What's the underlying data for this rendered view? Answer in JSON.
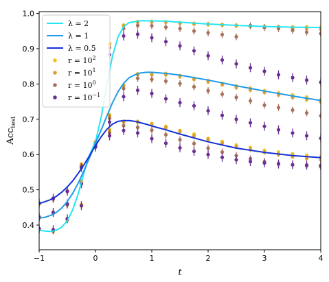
{
  "chart_data": {
    "type": "line",
    "xlabel": "t",
    "ylabel": "Acc_test",
    "xlim": [
      -1,
      4
    ],
    "ylim": [
      0.33,
      1.005
    ],
    "x_ticks": [
      -1,
      0,
      1,
      2,
      3,
      4
    ],
    "x_tick_labels": [
      "−1",
      "0",
      "1",
      "2",
      "3",
      "4"
    ],
    "y_ticks": [
      0.4,
      0.5,
      0.6,
      0.7,
      0.8,
      0.9,
      1.0
    ],
    "y_tick_labels": [
      "0.4",
      "0.5",
      "0.6",
      "0.7",
      "0.8",
      "0.9",
      "1.0"
    ],
    "grid": false,
    "legend_position": "top-left",
    "curves": [
      {
        "name": "λ = 2",
        "color": "#22e5f2",
        "x": [
          -1,
          -0.9,
          -0.8,
          -0.7,
          -0.6,
          -0.5,
          -0.4,
          -0.3,
          -0.2,
          -0.1,
          0,
          0.1,
          0.2,
          0.3,
          0.4,
          0.5,
          0.6,
          0.8,
          1.0,
          1.25,
          1.5,
          2,
          2.5,
          3,
          3.5,
          4
        ],
        "y": [
          0.386,
          0.383,
          0.382,
          0.385,
          0.394,
          0.412,
          0.445,
          0.492,
          0.551,
          0.601,
          0.636,
          0.705,
          0.795,
          0.878,
          0.933,
          0.963,
          0.974,
          0.979,
          0.979,
          0.978,
          0.975,
          0.97,
          0.966,
          0.963,
          0.961,
          0.96
        ]
      },
      {
        "name": "λ = 1",
        "color": "#1e9be8",
        "x": [
          -1,
          -0.9,
          -0.8,
          -0.7,
          -0.6,
          -0.5,
          -0.4,
          -0.3,
          -0.2,
          -0.1,
          0,
          0.1,
          0.2,
          0.3,
          0.4,
          0.5,
          0.6,
          0.7,
          0.8,
          0.9,
          1.0,
          1.25,
          1.5,
          2,
          2.5,
          3,
          3.5,
          4
        ],
        "y": [
          0.42,
          0.422,
          0.427,
          0.435,
          0.448,
          0.467,
          0.491,
          0.521,
          0.556,
          0.593,
          0.632,
          0.669,
          0.708,
          0.746,
          0.778,
          0.802,
          0.818,
          0.826,
          0.831,
          0.833,
          0.833,
          0.83,
          0.825,
          0.811,
          0.795,
          0.78,
          0.766,
          0.753
        ]
      },
      {
        "name": "λ = 0.5",
        "color": "#1330d8",
        "x": [
          -1,
          -0.9,
          -0.8,
          -0.7,
          -0.6,
          -0.5,
          -0.4,
          -0.3,
          -0.2,
          -0.1,
          0,
          0.1,
          0.2,
          0.3,
          0.4,
          0.5,
          0.6,
          0.7,
          0.8,
          0.9,
          1.0,
          1.25,
          1.5,
          2,
          2.5,
          3,
          3.5,
          4
        ],
        "y": [
          0.461,
          0.466,
          0.472,
          0.481,
          0.493,
          0.508,
          0.526,
          0.548,
          0.572,
          0.598,
          0.625,
          0.65,
          0.671,
          0.686,
          0.694,
          0.696,
          0.696,
          0.694,
          0.69,
          0.686,
          0.681,
          0.67,
          0.658,
          0.636,
          0.618,
          0.606,
          0.597,
          0.591
        ]
      }
    ],
    "x_points": [
      -1,
      -0.75,
      -0.5,
      -0.25,
      0,
      0.25,
      0.5,
      0.75,
      1,
      1.25,
      1.5,
      1.75,
      2,
      2.25,
      2.5,
      2.75,
      3,
      3.25,
      3.5,
      3.75,
      4
    ],
    "point_series": [
      {
        "name": "r = 10^2",
        "label_base": "r = 10",
        "label_exp": "2",
        "color": "#f2c21b",
        "groups": [
          [
            0.387,
            0.383,
            0.414,
            0.458,
            0.636,
            0.915,
            0.967,
            0.977,
            0.977,
            0.976,
            0.973,
            0.972,
            0.971,
            0.969,
            0.967,
            0.966,
            0.964,
            0.963,
            0.962,
            0.962,
            0.961
          ],
          [
            0.42,
            0.434,
            0.458,
            0.523,
            0.632,
            0.713,
            0.797,
            0.829,
            0.828,
            0.83,
            0.824,
            0.816,
            0.81,
            0.802,
            0.795,
            0.789,
            0.781,
            0.775,
            0.769,
            0.763,
            0.755
          ],
          [
            0.46,
            0.474,
            0.497,
            0.573,
            0.627,
            0.671,
            0.694,
            0.694,
            0.688,
            0.68,
            0.668,
            0.658,
            0.646,
            0.637,
            0.627,
            0.62,
            0.612,
            0.607,
            0.602,
            0.598,
            0.594
          ]
        ]
      },
      {
        "name": "r = 10^1",
        "label_base": "r = 10",
        "label_exp": "1",
        "color": "#d8a131",
        "groups": [
          [
            0.387,
            0.382,
            0.414,
            0.456,
            0.635,
            0.912,
            0.965,
            0.975,
            0.976,
            0.975,
            0.972,
            0.97,
            0.969,
            0.967,
            0.965,
            0.963,
            0.961,
            0.96,
            0.958,
            0.957,
            0.955
          ],
          [
            0.42,
            0.433,
            0.458,
            0.522,
            0.631,
            0.71,
            0.795,
            0.826,
            0.826,
            0.826,
            0.821,
            0.813,
            0.806,
            0.798,
            0.79,
            0.783,
            0.776,
            0.769,
            0.762,
            0.756,
            0.749
          ],
          [
            0.46,
            0.473,
            0.496,
            0.57,
            0.626,
            0.668,
            0.692,
            0.692,
            0.685,
            0.676,
            0.665,
            0.653,
            0.642,
            0.632,
            0.622,
            0.614,
            0.606,
            0.6,
            0.594,
            0.589,
            0.585
          ]
        ]
      },
      {
        "name": "r = 10^0",
        "label_base": "r = 10",
        "label_exp": "0",
        "color": "#a8705a",
        "groups": [
          [
            0.388,
            0.385,
            0.415,
            0.455,
            0.632,
            0.903,
            0.957,
            0.966,
            0.965,
            0.961,
            0.957,
            0.95,
            0.945,
            0.94,
            0.934,
            0.965,
            0.96,
            0.957,
            0.952,
            0.947,
            0.943
          ],
          [
            0.421,
            0.435,
            0.457,
            0.518,
            0.629,
            0.703,
            0.787,
            0.816,
            0.813,
            0.808,
            0.801,
            0.792,
            0.781,
            0.771,
            0.762,
            0.752,
            0.74,
            0.733,
            0.726,
            0.718,
            0.71
          ],
          [
            0.461,
            0.474,
            0.495,
            0.566,
            0.624,
            0.661,
            0.682,
            0.677,
            0.669,
            0.656,
            0.642,
            0.631,
            0.618,
            0.607,
            0.597,
            0.588,
            0.58,
            0.575,
            0.571,
            0.568,
            0.565
          ]
        ]
      },
      {
        "name": "r = 10^-1",
        "label_base": "r = 10",
        "label_exp": "−1",
        "color": "#6a2f92",
        "groups": [
          [
            0.39,
            0.387,
            0.418,
            0.455,
            0.626,
            0.883,
            0.936,
            0.941,
            0.931,
            0.92,
            0.908,
            0.894,
            0.88,
            0.868,
            0.857,
            0.846,
            0.836,
            0.826,
            0.818,
            0.811,
            0.805
          ],
          [
            0.423,
            0.436,
            0.46,
            0.517,
            0.624,
            0.692,
            0.764,
            0.782,
            0.773,
            0.758,
            0.747,
            0.738,
            0.724,
            0.711,
            0.7,
            0.69,
            0.68,
            0.67,
            0.661,
            0.653,
            0.646
          ],
          [
            0.462,
            0.476,
            0.496,
            0.563,
            0.621,
            0.653,
            0.668,
            0.661,
            0.645,
            0.632,
            0.619,
            0.609,
            0.6,
            0.592,
            0.585,
            0.58,
            0.576,
            0.573,
            0.571,
            0.57,
            0.569
          ]
        ]
      }
    ]
  }
}
